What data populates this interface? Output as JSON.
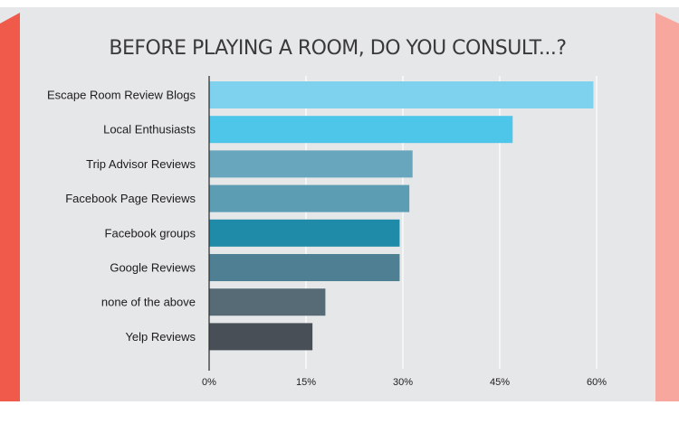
{
  "chart_data": {
    "type": "bar",
    "orientation": "horizontal",
    "title": "BEFORE PLAYING A ROOM, DO YOU CONSULT...?",
    "categories": [
      "Escape Room Review Blogs",
      "Local Enthusiasts",
      "Trip Advisor Reviews",
      "Facebook Page Reviews",
      "Facebook groups",
      "Google Reviews",
      "none of the above",
      "Yelp Reviews"
    ],
    "values": [
      59.5,
      47,
      31.5,
      31,
      29.5,
      29.5,
      18,
      16
    ],
    "bar_colors": [
      "#7fd2ee",
      "#4ec6ea",
      "#68a6bd",
      "#5c9db4",
      "#1f8ba8",
      "#4f7f92",
      "#566b76",
      "#494f56"
    ],
    "xlim": [
      0,
      60
    ],
    "xticks": [
      0,
      15,
      30,
      45,
      60
    ],
    "xtick_labels": [
      "0%",
      "15%",
      "30%",
      "45%",
      "60%"
    ],
    "xlabel": "",
    "ylabel": "",
    "grid": "vertical"
  },
  "colors": {
    "panel_background": "#e6e7e8",
    "left_accent": "#f05a4b",
    "right_accent": "#f7a79d",
    "grid": "#ffffff",
    "axis": "#333333"
  }
}
